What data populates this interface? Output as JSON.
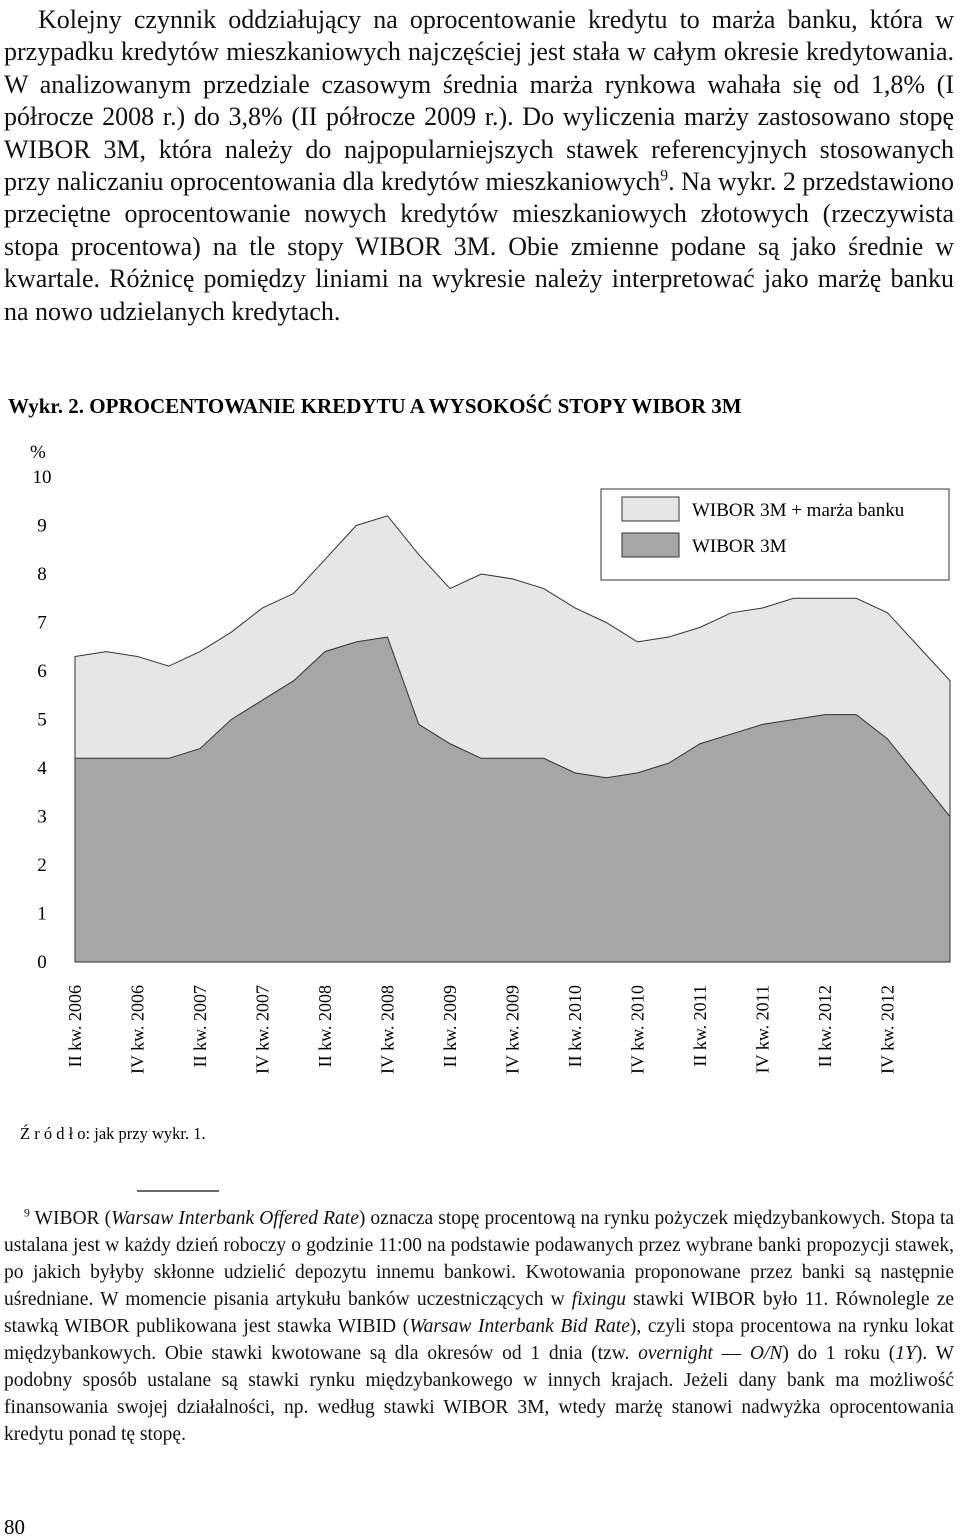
{
  "paragraph": {
    "parts": [
      {
        "text": "Kolejny czynnik oddziałujący na oprocentowanie kredytu to marża banku, która w przypadku kredytów mieszkaniowych najczęściej jest stała w całym okresie kredytowania. W analizowanym przedziale czasowym średnia marża rynkowa wahała się od 1,8% (I półrocze 2008 r.) do 3,8% (II półrocze 2009 r.). Do wyliczenia marży zastosowano stopę WIBOR 3M, która należy do najpopularniejszych stawek referencyjnych stosowanych przy naliczaniu oprocentowania dla kredytów mieszkaniowych"
      },
      {
        "text": "9",
        "style": "superscript"
      },
      {
        "text": ". Na wykr. 2 przedstawiono przeciętne oprocentowanie nowych kredytów mieszkaniowych złotowych (rzeczywista stopa procentowa) na tle stopy WIBOR 3M. Obie zmienne podane są jako średnie w kwartale. Różnicę pomiędzy liniami na wykresie należy interpretować jako marżę banku na nowo udzielanych kredytach."
      }
    ]
  },
  "chart_data": {
    "type": "area",
    "title": "Wykr. 2. OPROCENTOWANIE KREDYTU A WYSOKOŚĆ STOPY WIBOR 3M",
    "y_label": "%",
    "categories": [
      "II kw. 2006",
      null,
      "IV kw. 2006",
      null,
      "II kw. 2007",
      null,
      "IV kw. 2007",
      null,
      "II kw. 2008",
      null,
      "IV kw. 2008",
      null,
      "II kw. 2009",
      null,
      "IV kw. 2009",
      null,
      "II kw. 2010",
      null,
      "IV kw. 2010",
      null,
      "II kw. 2011",
      null,
      "IV kw. 2011",
      null,
      "II kw. 2012",
      null,
      "IV kw. 2012",
      null,
      null
    ],
    "series": [
      {
        "name": "WIBOR 3M + marża banku",
        "color": "#e6e6e6",
        "values": [
          6.3,
          6.4,
          6.3,
          6.1,
          6.4,
          6.8,
          7.3,
          7.6,
          8.3,
          9.0,
          9.2,
          8.4,
          7.7,
          8.0,
          7.9,
          7.7,
          7.3,
          7.0,
          6.6,
          6.7,
          6.9,
          7.2,
          7.3,
          7.5,
          7.5,
          7.5,
          7.2,
          6.5,
          5.8
        ]
      },
      {
        "name": "WIBOR 3M",
        "color": "#a6a6a6",
        "values": [
          4.2,
          4.2,
          4.2,
          4.2,
          4.4,
          5.0,
          5.4,
          5.8,
          6.4,
          6.6,
          6.7,
          4.9,
          4.5,
          4.2,
          4.2,
          4.2,
          3.9,
          3.8,
          3.9,
          4.1,
          4.5,
          4.7,
          4.9,
          5.0,
          5.1,
          5.1,
          4.6,
          3.8,
          3.0
        ]
      }
    ],
    "ylim": [
      0,
      10
    ],
    "yticks": [
      0,
      1,
      2,
      3,
      4,
      5,
      6,
      7,
      8,
      9,
      10
    ],
    "legend": "top-right",
    "source": "Ź r ó d ł o: jak przy wykr. 1."
  },
  "footnote": {
    "parts": [
      {
        "text": "9",
        "style": "superscript"
      },
      {
        "text": " WIBOR ("
      },
      {
        "text": "Warsaw Interbank Offered Rate",
        "style": "italic"
      },
      {
        "text": ") oznacza stopę procentową na rynku pożyczek międzybankowych. Stopa ta ustalana jest w każdy dzień roboczy o godzinie 11:00 na podstawie podawanych przez wybrane banki propozycji stawek, po jakich byłyby skłonne udzielić depozytu innemu bankowi. Kwotowania proponowane przez banki są następnie uśredniane. W momencie pisania artykułu banków uczestniczących w "
      },
      {
        "text": "fixingu",
        "style": "italic"
      },
      {
        "text": " stawki WIBOR było 11. Równolegle ze stawką WIBOR publikowana jest stawka WIBID ("
      },
      {
        "text": "Warsaw Interbank Bid Rate",
        "style": "italic"
      },
      {
        "text": "), czyli stopa procentowa na rynku lokat międzybankowych. Obie stawki kwotowane są dla okresów od 1 dnia (tzw. "
      },
      {
        "text": "overnight",
        "style": "italic"
      },
      {
        "text": " — "
      },
      {
        "text": "O/N",
        "style": "italic"
      },
      {
        "text": ") do 1 roku ("
      },
      {
        "text": "1Y",
        "style": "italic"
      },
      {
        "text": "). W podobny sposób ustalane są stawki rynku międzybankowego w innych krajach. Jeżeli dany bank ma możliwość finansowania swojej działalności, np. według stawki WIBOR 3M, wtedy marżę stanowi nadwyżka oprocentowania kredytu ponad tę stopę."
      }
    ]
  },
  "page_number": "80"
}
